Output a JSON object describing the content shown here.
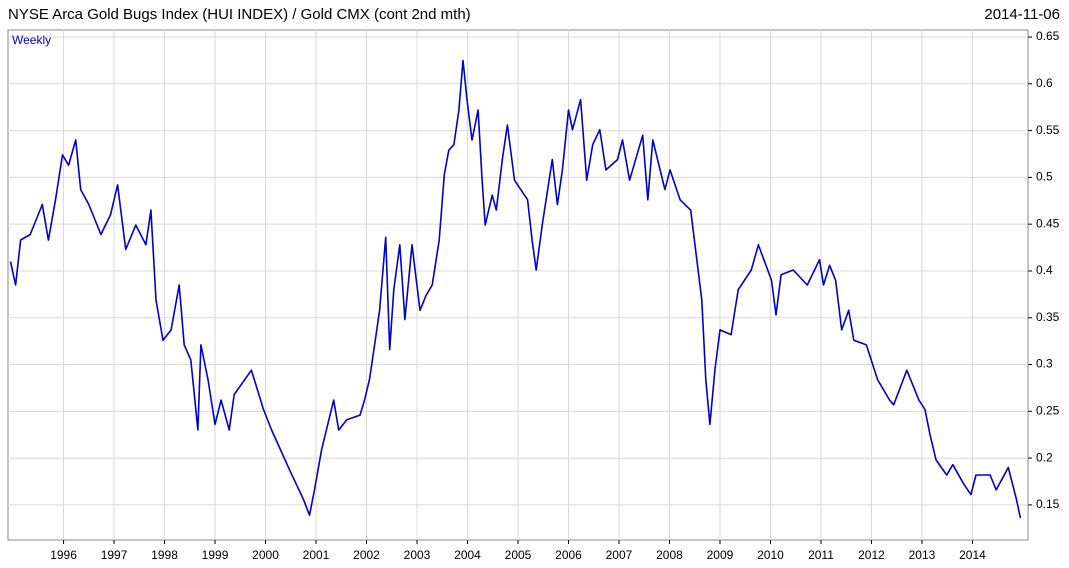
{
  "chart_data": {
    "type": "line",
    "title": "NYSE Arca Gold Bugs Index (HUI INDEX) / Gold CMX (cont 2nd mth)",
    "date": "2014-11-06",
    "annotation": "Weekly",
    "x": [
      1994.95,
      1995.05,
      1995.15,
      1995.34,
      1995.58,
      1995.7,
      1995.84,
      1995.98,
      1996.1,
      1996.24,
      1996.34,
      1996.5,
      1996.74,
      1996.93,
      1997.07,
      1997.23,
      1997.43,
      1997.63,
      1997.73,
      1997.83,
      1997.97,
      1998.13,
      1998.29,
      1998.39,
      1998.52,
      1998.66,
      1998.72,
      1998.86,
      1999.0,
      1999.12,
      1999.28,
      1999.38,
      1999.72,
      1999.96,
      2000.12,
      2000.47,
      2000.75,
      2000.87,
      2000.97,
      2001.11,
      2001.35,
      2001.45,
      2001.61,
      2001.87,
      2001.96,
      2002.06,
      2002.16,
      2002.26,
      2002.38,
      2002.46,
      2002.54,
      2002.66,
      2002.76,
      2002.9,
      2003.06,
      2003.18,
      2003.3,
      2003.44,
      2003.54,
      2003.63,
      2003.73,
      2003.83,
      2003.91,
      2003.99,
      2004.09,
      2004.21,
      2004.29,
      2004.35,
      2004.49,
      2004.57,
      2004.69,
      2004.79,
      2004.93,
      2005.19,
      2005.28,
      2005.36,
      2005.48,
      2005.68,
      2005.78,
      2005.88,
      2006.0,
      2006.08,
      2006.24,
      2006.36,
      2006.48,
      2006.62,
      2006.74,
      2006.97,
      2007.07,
      2007.21,
      2007.47,
      2007.57,
      2007.67,
      2007.91,
      2008.01,
      2008.21,
      2008.42,
      2008.54,
      2008.64,
      2008.72,
      2008.8,
      2008.9,
      2009.0,
      2009.22,
      2009.36,
      2009.62,
      2009.76,
      2010.02,
      2010.11,
      2010.21,
      2010.45,
      2010.73,
      2010.97,
      2011.05,
      2011.17,
      2011.29,
      2011.41,
      2011.55,
      2011.65,
      2011.9,
      2012.12,
      2012.36,
      2012.44,
      2012.7,
      2012.94,
      2013.06,
      2013.16,
      2013.28,
      2013.49,
      2013.61,
      2013.83,
      2013.97,
      2014.07,
      2014.35,
      2014.47,
      2014.71,
      2014.87,
      2014.95
    ],
    "values": [
      0.41,
      0.385,
      0.433,
      0.439,
      0.471,
      0.433,
      0.476,
      0.524,
      0.513,
      0.54,
      0.487,
      0.471,
      0.439,
      0.46,
      0.492,
      0.423,
      0.449,
      0.428,
      0.465,
      0.369,
      0.326,
      0.337,
      0.385,
      0.321,
      0.305,
      0.23,
      0.321,
      0.284,
      0.236,
      0.262,
      0.23,
      0.268,
      0.294,
      0.252,
      0.23,
      0.188,
      0.156,
      0.139,
      0.166,
      0.209,
      0.262,
      0.23,
      0.241,
      0.246,
      0.262,
      0.284,
      0.321,
      0.358,
      0.436,
      0.316,
      0.38,
      0.428,
      0.348,
      0.428,
      0.358,
      0.374,
      0.385,
      0.433,
      0.503,
      0.529,
      0.535,
      0.572,
      0.625,
      0.583,
      0.54,
      0.572,
      0.497,
      0.449,
      0.481,
      0.465,
      0.519,
      0.556,
      0.497,
      0.476,
      0.433,
      0.401,
      0.449,
      0.519,
      0.471,
      0.508,
      0.572,
      0.551,
      0.583,
      0.497,
      0.535,
      0.551,
      0.508,
      0.519,
      0.54,
      0.497,
      0.545,
      0.476,
      0.54,
      0.487,
      0.508,
      0.476,
      0.465,
      0.412,
      0.369,
      0.284,
      0.236,
      0.294,
      0.337,
      0.332,
      0.38,
      0.401,
      0.428,
      0.39,
      0.353,
      0.396,
      0.401,
      0.385,
      0.412,
      0.385,
      0.406,
      0.39,
      0.337,
      0.358,
      0.326,
      0.321,
      0.284,
      0.262,
      0.257,
      0.294,
      0.262,
      0.252,
      0.225,
      0.198,
      0.182,
      0.193,
      0.172,
      0.161,
      0.182,
      0.182,
      0.166,
      0.19,
      0.156,
      0.136
    ],
    "color": "#0000cc",
    "xlim": [
      1994.9,
      2015.1
    ],
    "xticks": [
      1996,
      1997,
      1998,
      1999,
      2000,
      2001,
      2002,
      2003,
      2004,
      2005,
      2006,
      2007,
      2008,
      2009,
      2010,
      2011,
      2012,
      2013,
      2014
    ],
    "ylim": [
      0.1125,
      0.6575
    ],
    "yticks": [
      0.15,
      0.2,
      0.25,
      0.3,
      0.35,
      0.4,
      0.45,
      0.5,
      0.55,
      0.6,
      0.65
    ],
    "grid": true
  }
}
